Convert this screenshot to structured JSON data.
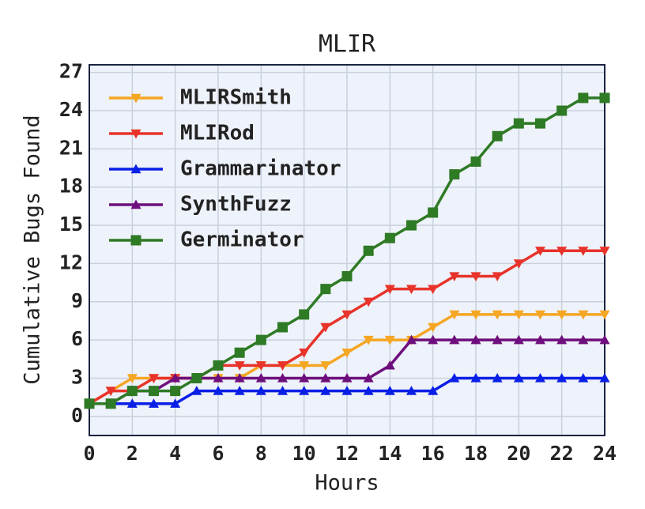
{
  "chart_data": {
    "type": "line",
    "title": "MLIR",
    "x_label": "Hours",
    "y_label": "Cumulative Bugs Found",
    "x": [
      0,
      1,
      2,
      3,
      4,
      5,
      6,
      7,
      8,
      9,
      10,
      11,
      12,
      13,
      14,
      15,
      16,
      17,
      18,
      19,
      20,
      21,
      22,
      23,
      24
    ],
    "series": [
      {
        "name": "MLIRSmith",
        "color": "#f5a623",
        "marker": "v",
        "values": [
          1,
          2,
          3,
          3,
          3,
          3,
          3,
          3,
          4,
          4,
          4,
          4,
          5,
          6,
          6,
          6,
          7,
          8,
          8,
          8,
          8,
          8,
          8,
          8,
          8
        ]
      },
      {
        "name": "MLIRod",
        "color": "#e8332a",
        "marker": "v",
        "values": [
          1,
          2,
          2,
          3,
          3,
          3,
          4,
          4,
          4,
          4,
          5,
          7,
          8,
          9,
          10,
          10,
          10,
          11,
          11,
          11,
          12,
          13,
          13,
          13,
          13
        ]
      },
      {
        "name": "Grammarinator",
        "color": "#0a1fe6",
        "marker": "^",
        "values": [
          1,
          1,
          1,
          1,
          1,
          2,
          2,
          2,
          2,
          2,
          2,
          2,
          2,
          2,
          2,
          2,
          2,
          3,
          3,
          3,
          3,
          3,
          3,
          3,
          3
        ]
      },
      {
        "name": "SynthFuzz",
        "color": "#6e0f7d",
        "marker": "^",
        "values": [
          1,
          1,
          2,
          2,
          3,
          3,
          3,
          3,
          3,
          3,
          3,
          3,
          3,
          3,
          4,
          6,
          6,
          6,
          6,
          6,
          6,
          6,
          6,
          6,
          6
        ]
      },
      {
        "name": "Germinator",
        "color": "#2e7a25",
        "marker": "s",
        "values": [
          1,
          1,
          2,
          2,
          2,
          3,
          4,
          5,
          6,
          7,
          8,
          10,
          11,
          13,
          14,
          15,
          16,
          19,
          20,
          22,
          23,
          23,
          24,
          25,
          25
        ]
      }
    ],
    "xlim": [
      0,
      24
    ],
    "xticks": [
      0,
      2,
      4,
      6,
      8,
      10,
      12,
      14,
      16,
      18,
      20,
      22,
      24
    ],
    "ylim": [
      -1.5,
      27.6
    ],
    "yticks": [
      0,
      3,
      6,
      9,
      12,
      15,
      18,
      21,
      24,
      27
    ],
    "grid": true,
    "legend": "upper left"
  }
}
